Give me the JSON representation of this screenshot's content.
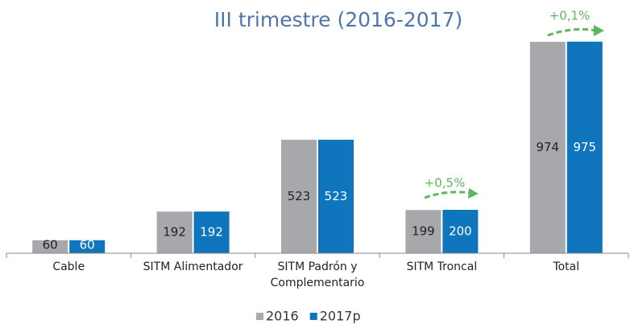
{
  "chart_data": {
    "type": "bar",
    "title": "III trimestre (2016-2017)",
    "categories": [
      "Cable",
      "SITM Alimentador",
      "SITM Padrón y Complementario",
      "SITM Troncal",
      "Total"
    ],
    "series": [
      {
        "name": "2016",
        "color": "#a6a8ab",
        "values": [
          60,
          192,
          523,
          199,
          974
        ]
      },
      {
        "name": "2017p",
        "color": "#0f75bc",
        "values": [
          60,
          192,
          523,
          200,
          975
        ]
      }
    ],
    "ylim": [
      0,
      1000
    ],
    "annotations": [
      "+0,5%",
      "+0,1%"
    ],
    "grid": false,
    "legend": "bottom"
  }
}
